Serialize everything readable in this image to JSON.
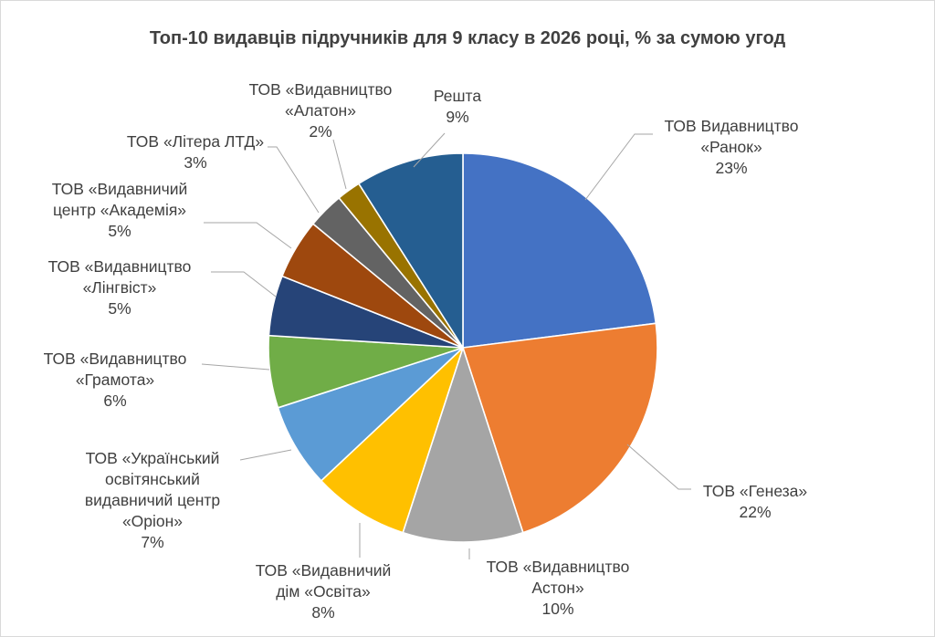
{
  "chart_data": {
    "type": "pie",
    "title": "Топ-10 видавців підручників для 9 класу в 2026 році, % за сумою угод",
    "unit": "%",
    "slices": [
      {
        "label_lines": [
          "ТОВ Видавництво",
          "«Ранок»"
        ],
        "value": 23,
        "pct_label": "23%",
        "color": "#4472C4"
      },
      {
        "label_lines": [
          "ТОВ «Генеза»"
        ],
        "value": 22,
        "pct_label": "22%",
        "color": "#ED7D31"
      },
      {
        "label_lines": [
          "ТОВ «Видавництво",
          "Астон»"
        ],
        "value": 10,
        "pct_label": "10%",
        "color": "#A5A5A5"
      },
      {
        "label_lines": [
          "ТОВ «Видавничий",
          "дім «Освіта»"
        ],
        "value": 8,
        "pct_label": "8%",
        "color": "#FFC000"
      },
      {
        "label_lines": [
          "ТОВ «Український",
          "освітянський",
          "видавничий центр",
          "«Оріон»"
        ],
        "value": 7,
        "pct_label": "7%",
        "color": "#5B9BD5"
      },
      {
        "label_lines": [
          "ТОВ «Видавництво",
          "«Грамота»"
        ],
        "value": 6,
        "pct_label": "6%",
        "color": "#70AD47"
      },
      {
        "label_lines": [
          "ТОВ «Видавництво",
          "«Лінгвіст»"
        ],
        "value": 5,
        "pct_label": "5%",
        "color": "#264478"
      },
      {
        "label_lines": [
          "ТОВ «Видавничий",
          "центр «Академія»"
        ],
        "value": 5,
        "pct_label": "5%",
        "color": "#9E480E"
      },
      {
        "label_lines": [
          "ТОВ «Літера ЛТД»"
        ],
        "value": 3,
        "pct_label": "3%",
        "color": "#636363"
      },
      {
        "label_lines": [
          "ТОВ «Видавництво",
          "«Алатон»"
        ],
        "value": 2,
        "pct_label": "2%",
        "color": "#997300"
      },
      {
        "label_lines": [
          "Решта"
        ],
        "value": 9,
        "pct_label": "9%",
        "color": "#255E91"
      }
    ]
  }
}
